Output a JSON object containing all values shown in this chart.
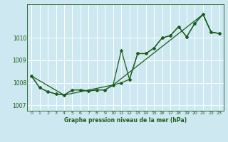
{
  "title": "Graphe pression niveau de la mer (hPa)",
  "bg_color": "#cde8f0",
  "grid_color": "#ffffff",
  "line_color": "#1a5c1a",
  "xlim": [
    -0.5,
    23.5
  ],
  "ylim": [
    1006.75,
    1011.5
  ],
  "yticks": [
    1007,
    1008,
    1009,
    1010
  ],
  "xticks": [
    0,
    1,
    2,
    3,
    4,
    5,
    6,
    7,
    8,
    9,
    10,
    11,
    12,
    13,
    14,
    15,
    16,
    17,
    18,
    19,
    20,
    21,
    22,
    23
  ],
  "series1_x": [
    0,
    1,
    2,
    3,
    4,
    5,
    6,
    7,
    8,
    9,
    10,
    11,
    12,
    13,
    14,
    15,
    16,
    17,
    18,
    19,
    20,
    21,
    22,
    23
  ],
  "series1_y": [
    1008.3,
    1007.78,
    1007.6,
    1007.5,
    1007.45,
    1007.68,
    1007.68,
    1007.63,
    1007.68,
    1007.68,
    1007.9,
    1008.0,
    1008.15,
    1009.3,
    1009.3,
    1009.55,
    1010.0,
    1010.1,
    1010.5,
    1010.05,
    1010.65,
    1011.05,
    1010.25,
    1010.2
  ],
  "series2_x": [
    0,
    1,
    2,
    3,
    4,
    5,
    6,
    7,
    8,
    9,
    10,
    11,
    12,
    13,
    14,
    15,
    16,
    17,
    18,
    19,
    20,
    21,
    22,
    23
  ],
  "series2_y": [
    1008.3,
    1007.78,
    1007.6,
    1007.5,
    1007.45,
    1007.68,
    1007.68,
    1007.63,
    1007.68,
    1007.68,
    1007.9,
    1009.45,
    1008.15,
    1009.3,
    1009.3,
    1009.55,
    1010.0,
    1010.1,
    1010.5,
    1010.05,
    1010.65,
    1011.05,
    1010.25,
    1010.2
  ],
  "series3_x": [
    0,
    4,
    10,
    21,
    22,
    23
  ],
  "series3_y": [
    1008.3,
    1007.45,
    1007.9,
    1011.05,
    1010.25,
    1010.2
  ],
  "marker": "D",
  "markersize": 1.8,
  "linewidth": 0.9
}
